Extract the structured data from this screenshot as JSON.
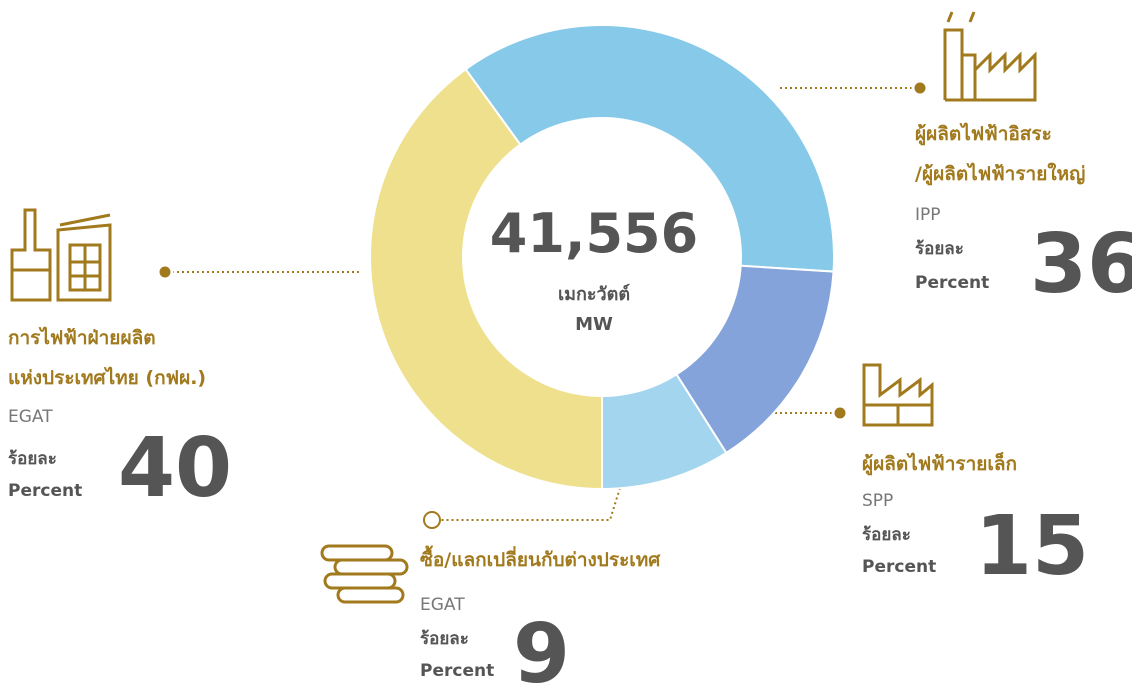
{
  "chart_data": {
    "type": "pie",
    "donut": true,
    "total": {
      "value": 41556,
      "label": "41,556"
    },
    "unit_th": "เมกะวัตต์",
    "unit": "MW",
    "categories": [
      [
        "ผู้ผลิตไฟฟ้าอิสระ",
        "/ผู้ผลิตไฟฟ้ารายใหญ่"
      ],
      [
        "ผู้ผลิตไฟฟ้ารายเล็ก"
      ],
      [
        "ซื้อ/แลกเปลี่ยนกับต่างประเทศ"
      ],
      [
        "การไฟฟ้าฝ่ายผลิต",
        "แห่งประเทศไทย (กฟผ.)"
      ]
    ],
    "codes": [
      "IPP",
      "SPP",
      "EGAT",
      "EGAT"
    ],
    "values": [
      36,
      15,
      9,
      40
    ],
    "colors": [
      "#86c9e8",
      "#84a3da",
      "#a3d6ee",
      "#efe08e"
    ],
    "percent_label_th": "ร้อยละ",
    "percent_label": "Percent"
  }
}
